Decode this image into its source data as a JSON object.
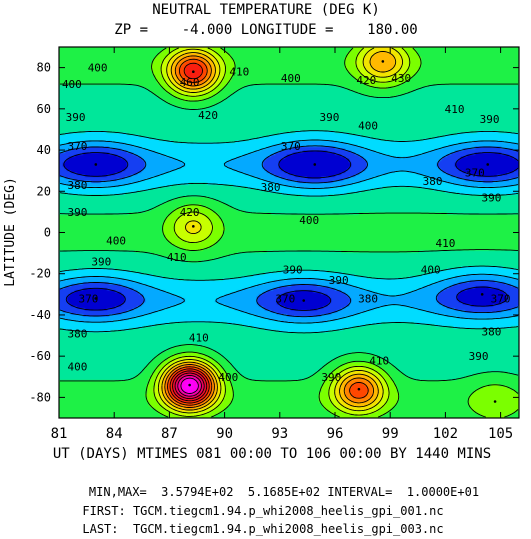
{
  "title": {
    "line1": "NEUTRAL TEMPERATURE (DEG K)",
    "line2": "ZP =    -4.000 LONGITUDE =    180.00"
  },
  "footer": {
    "minmax": "MIN,MAX=  3.5794E+02  5.1685E+02 INTERVAL=  1.0000E+01",
    "first": "FIRST: TGCM.tiegcm1.94.p_whi2008_heelis_gpi_001.nc",
    "last": "LAST:  TGCM.tiegcm1.94.p_whi2008_heelis_gpi_003.nc"
  },
  "chart_data": {
    "type": "heatmap",
    "title": "NEUTRAL TEMPERATURE (DEG K)",
    "xlabel": "UT (DAYS) MTIMES 081 00:00 TO 106 00:00 BY 1440 MINS",
    "ylabel": "LATITUDE (DEG)",
    "xlim": [
      81,
      106
    ],
    "ylim": [
      -90,
      90
    ],
    "x_ticks": [
      81,
      84,
      87,
      90,
      93,
      96,
      99,
      102,
      105
    ],
    "y_ticks": [
      -80,
      -60,
      -40,
      -20,
      0,
      20,
      40,
      60,
      80
    ],
    "min": 357.94,
    "max": 516.85,
    "interval": 10,
    "contour_labels": [
      {
        "value": "400",
        "x": 83.1,
        "y": 80
      },
      {
        "value": "400",
        "x": 81.7,
        "y": 72
      },
      {
        "value": "460",
        "x": 88.1,
        "y": 73
      },
      {
        "value": "410",
        "x": 90.8,
        "y": 78
      },
      {
        "value": "400",
        "x": 93.6,
        "y": 75
      },
      {
        "value": "420",
        "x": 97.7,
        "y": 74
      },
      {
        "value": "430",
        "x": 99.6,
        "y": 75
      },
      {
        "value": "390",
        "x": 81.9,
        "y": 56
      },
      {
        "value": "420",
        "x": 89.1,
        "y": 57
      },
      {
        "value": "390",
        "x": 95.7,
        "y": 56
      },
      {
        "value": "400",
        "x": 97.8,
        "y": 52
      },
      {
        "value": "410",
        "x": 102.5,
        "y": 60
      },
      {
        "value": "390",
        "x": 104.4,
        "y": 55
      },
      {
        "value": "370",
        "x": 82.0,
        "y": 42
      },
      {
        "value": "370",
        "x": 93.6,
        "y": 42
      },
      {
        "value": "380",
        "x": 82.0,
        "y": 23
      },
      {
        "value": "380",
        "x": 92.5,
        "y": 22
      },
      {
        "value": "380",
        "x": 101.3,
        "y": 25
      },
      {
        "value": "370",
        "x": 103.6,
        "y": 29
      },
      {
        "value": "390",
        "x": 104.5,
        "y": 17
      },
      {
        "value": "390",
        "x": 82.0,
        "y": 10
      },
      {
        "value": "420",
        "x": 88.1,
        "y": 10
      },
      {
        "value": "400",
        "x": 94.6,
        "y": 6
      },
      {
        "value": "400",
        "x": 84.1,
        "y": -4
      },
      {
        "value": "410",
        "x": 87.4,
        "y": -12
      },
      {
        "value": "410",
        "x": 102.0,
        "y": -5
      },
      {
        "value": "390",
        "x": 83.3,
        "y": -14
      },
      {
        "value": "390",
        "x": 93.7,
        "y": -18
      },
      {
        "value": "390",
        "x": 96.2,
        "y": -23
      },
      {
        "value": "400",
        "x": 101.2,
        "y": -18
      },
      {
        "value": "370",
        "x": 82.6,
        "y": -32
      },
      {
        "value": "370",
        "x": 93.3,
        "y": -32
      },
      {
        "value": "380",
        "x": 97.8,
        "y": -32
      },
      {
        "value": "370",
        "x": 105.0,
        "y": -32
      },
      {
        "value": "380",
        "x": 82.0,
        "y": -49
      },
      {
        "value": "380",
        "x": 104.5,
        "y": -48
      },
      {
        "value": "410",
        "x": 88.6,
        "y": -51
      },
      {
        "value": "400",
        "x": 82.0,
        "y": -65
      },
      {
        "value": "400",
        "x": 90.2,
        "y": -70
      },
      {
        "value": "390",
        "x": 95.8,
        "y": -70
      },
      {
        "value": "410",
        "x": 98.4,
        "y": -62
      },
      {
        "value": "390",
        "x": 103.8,
        "y": -60
      }
    ],
    "features": [
      {
        "kind": "max",
        "x": 88.1,
        "y": -74,
        "value": 516.85
      },
      {
        "kind": "max",
        "x": 88.3,
        "y": 78,
        "value": 470
      },
      {
        "kind": "max",
        "x": 97.3,
        "y": -76,
        "value": 460
      },
      {
        "kind": "max",
        "x": 98.6,
        "y": 83,
        "value": 440
      },
      {
        "kind": "max",
        "x": 88.3,
        "y": 3,
        "value": 425
      },
      {
        "kind": "max",
        "x": 104.7,
        "y": -82,
        "value": 410
      },
      {
        "kind": "min",
        "x": 94.9,
        "y": 33,
        "value": 357.94
      },
      {
        "kind": "min",
        "x": 83.0,
        "y": 33,
        "value": 362
      },
      {
        "kind": "min",
        "x": 104.3,
        "y": 33,
        "value": 362
      },
      {
        "kind": "min",
        "x": 83.0,
        "y": -32,
        "value": 364
      },
      {
        "kind": "min",
        "x": 94.3,
        "y": -33,
        "value": 366
      },
      {
        "kind": "min",
        "x": 104.0,
        "y": -30,
        "value": 366
      }
    ],
    "colors": {
      "low": "#0000d0",
      "mid_low": "#00c8ff",
      "mid": "#00e8a0",
      "mid_high": "#80ff00",
      "high": "#ff8000",
      "peak": "#ff00ff"
    }
  }
}
